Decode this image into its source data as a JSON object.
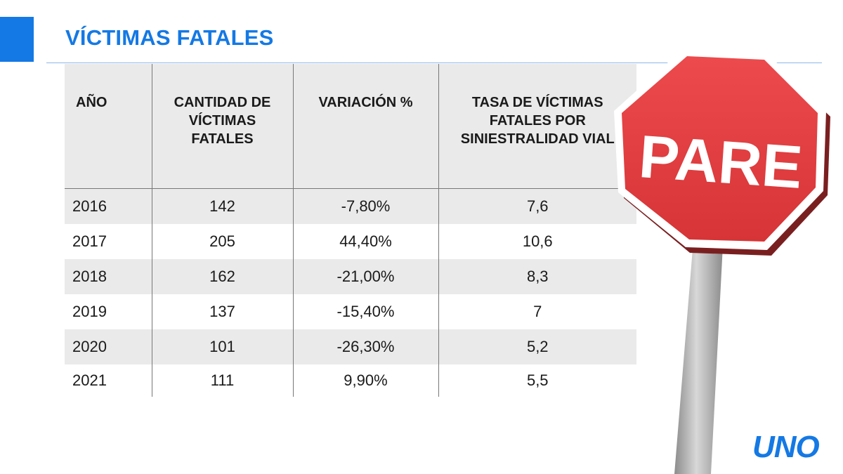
{
  "title": "VÍCTIMAS FATALES",
  "colors": {
    "accent": "#1479e4",
    "sign_red": "#e03a3c",
    "pole": "#a9a9a9"
  },
  "sign_text": "PARE",
  "logo": "UNO",
  "chart_data": {
    "type": "table",
    "title": "VÍCTIMAS FATALES",
    "columns": [
      "AÑO",
      "CANTIDAD DE VÍCTIMAS FATALES",
      "VARIACIÓN %",
      "TASA DE VÍCTIMAS FATALES POR SINIESTRALIDAD VIAL"
    ],
    "rows": [
      [
        "2016",
        "142",
        "-7,80%",
        "7,6"
      ],
      [
        "2017",
        "205",
        "44,40%",
        "10,6"
      ],
      [
        "2018",
        "162",
        "-21,00%",
        "8,3"
      ],
      [
        "2019",
        "137",
        "-15,40%",
        "7"
      ],
      [
        "2020",
        "101",
        "-26,30%",
        "5,2"
      ],
      [
        "2021",
        "111",
        "9,90%",
        "5,5"
      ]
    ]
  }
}
